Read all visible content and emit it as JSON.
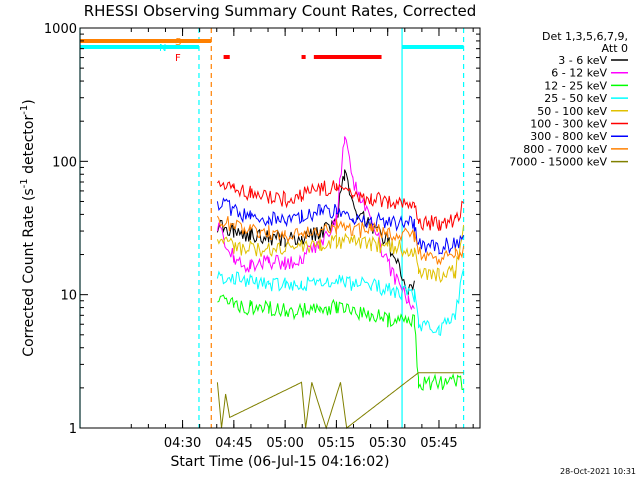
{
  "chart_data": {
    "type": "line",
    "title": "RHESSI Observing Summary Count Rates, Corrected",
    "xlabel": "Start Time (06-Jul-15 04:16:02)",
    "ylabel": "Corrected Count Rate (s⁻¹ detector⁻¹)",
    "ylabel_parts": {
      "main": "Corrected Count Rate (s",
      "sup1": "-1",
      "mid": " detector",
      "sup2": "-1",
      "end": ")"
    },
    "y_scale": "log",
    "ylim": [
      1,
      1000
    ],
    "xlim_minutes": [
      4.0,
      5.95
    ],
    "y_ticks": [
      {
        "v": 1,
        "label": "1"
      },
      {
        "v": 10,
        "label": "10"
      },
      {
        "v": 100,
        "label": "100"
      },
      {
        "v": 1000,
        "label": "1000"
      }
    ],
    "x_ticks": [
      {
        "t": 4.5,
        "label": "04:30"
      },
      {
        "t": 4.75,
        "label": "04:45"
      },
      {
        "t": 5.0,
        "label": "05:00"
      },
      {
        "t": 5.25,
        "label": "05:15"
      },
      {
        "t": 5.5,
        "label": "05:30"
      },
      {
        "t": 5.75,
        "label": "05:45"
      }
    ],
    "detectors": "Det 1,3,5,6,7,9,",
    "attenuator": "Att 0",
    "legend_placement": "right",
    "timestamp": "28-Oct-2021 10:31",
    "flags": [
      {
        "label": "S",
        "color": "#ff8000",
        "segments": [
          [
            4.0,
            4.64
          ]
        ]
      },
      {
        "label": "N",
        "color": "#00ffff",
        "segments": [
          [
            4.0,
            4.58
          ],
          [
            5.57,
            5.87
          ]
        ]
      },
      {
        "label": "F",
        "color": "#ff0000",
        "segments": [
          [
            4.7,
            4.73
          ],
          [
            5.08,
            5.1
          ],
          [
            5.14,
            5.47
          ]
        ]
      }
    ],
    "vlines": [
      {
        "t": 4.0,
        "color": "#00ffff",
        "style": "solid"
      },
      {
        "t": 4.58,
        "color": "#00ffff",
        "style": "dashed"
      },
      {
        "t": 4.64,
        "color": "#ff8000",
        "style": "dashed"
      },
      {
        "t": 5.57,
        "color": "#00ffff",
        "style": "solid"
      },
      {
        "t": 5.87,
        "color": "#00ffff",
        "style": "dashed"
      }
    ],
    "series": [
      {
        "name": "3 - 6 keV",
        "color": "#000000",
        "x": [
          4.67,
          4.75,
          4.83,
          4.92,
          5.0,
          5.08,
          5.17,
          5.25,
          5.29,
          5.33,
          5.42,
          5.5,
          5.6,
          5.63
        ],
        "y": [
          33,
          30,
          28,
          27,
          26,
          27,
          29,
          37,
          80,
          45,
          32,
          25,
          11,
          12
        ]
      },
      {
        "name": "6 - 12 keV",
        "color": "#ff00ff",
        "x": [
          4.67,
          4.75,
          4.83,
          4.92,
          5.0,
          5.08,
          5.17,
          5.25,
          5.29,
          5.33,
          5.42,
          5.5,
          5.6,
          5.63
        ],
        "y": [
          33,
          19,
          16,
          18,
          17,
          19,
          24,
          38,
          150,
          70,
          35,
          17,
          9,
          8
        ]
      },
      {
        "name": "12 - 25 keV",
        "color": "#00ff00",
        "x": [
          4.67,
          4.75,
          4.83,
          4.92,
          5.0,
          5.08,
          5.17,
          5.25,
          5.33,
          5.42,
          5.5,
          5.63,
          5.65,
          5.87
        ],
        "y": [
          9.5,
          8.5,
          8,
          8,
          7.5,
          7.5,
          8,
          8,
          7.5,
          7,
          6.5,
          6.5,
          2.2,
          2.2
        ]
      },
      {
        "name": "25 - 50 keV",
        "color": "#00ffff",
        "x": [
          4.67,
          4.75,
          4.83,
          4.92,
          5.0,
          5.08,
          5.17,
          5.25,
          5.33,
          5.42,
          5.5,
          5.63,
          5.65,
          5.75,
          5.83,
          5.87
        ],
        "y": [
          14,
          13,
          12.5,
          12,
          12,
          12,
          12.5,
          13,
          12,
          11.5,
          11,
          10,
          6,
          5.5,
          7,
          16
        ]
      },
      {
        "name": "50 - 100 keV",
        "color": "#e0c000",
        "x": [
          4.67,
          4.75,
          4.83,
          4.92,
          5.0,
          5.08,
          5.17,
          5.25,
          5.33,
          5.42,
          5.5,
          5.63,
          5.65,
          5.75,
          5.83,
          5.87
        ],
        "y": [
          27,
          23,
          22,
          22,
          22,
          23,
          24,
          25,
          25,
          24,
          23,
          22,
          15,
          14,
          15,
          33
        ]
      },
      {
        "name": "100 - 300 keV",
        "color": "#ff0000",
        "x": [
          4.67,
          4.75,
          4.83,
          4.92,
          5.0,
          5.08,
          5.17,
          5.25,
          5.33,
          5.42,
          5.5,
          5.63,
          5.65,
          5.75,
          5.83,
          5.87
        ],
        "y": [
          70,
          62,
          58,
          55,
          52,
          56,
          62,
          64,
          55,
          52,
          50,
          48,
          35,
          34,
          36,
          47
        ]
      },
      {
        "name": "300 - 800 keV",
        "color": "#0000ff",
        "x": [
          4.67,
          4.75,
          4.83,
          4.92,
          5.0,
          5.08,
          5.17,
          5.25,
          5.33,
          5.42,
          5.5,
          5.63,
          5.65,
          5.75,
          5.83,
          5.87
        ],
        "y": [
          50,
          43,
          38,
          37,
          36,
          38,
          42,
          42,
          38,
          36,
          35,
          34,
          24,
          23,
          24,
          26
        ]
      },
      {
        "name": "800 - 7000 keV",
        "color": "#ff8000",
        "x": [
          4.67,
          4.75,
          4.83,
          4.92,
          5.0,
          5.08,
          5.17,
          5.25,
          5.33,
          5.42,
          5.5,
          5.63,
          5.65,
          5.75,
          5.83,
          5.87
        ],
        "y": [
          38,
          32,
          30,
          29,
          28,
          29,
          31,
          32,
          31,
          30,
          29,
          28,
          20,
          19,
          20,
          21
        ]
      },
      {
        "name": "7000 - 15000 keV",
        "color": "#808000",
        "x": [
          4.67,
          4.69,
          4.71,
          4.73,
          5.08,
          5.1,
          5.13,
          5.2,
          5.27,
          5.3,
          5.65,
          5.7,
          5.8,
          5.87
        ],
        "y": [
          2.2,
          1.0,
          1.8,
          1.2,
          2.2,
          1.0,
          2.2,
          1.0,
          2.2,
          1.0,
          2.6,
          2.6,
          2.6,
          2.6
        ]
      }
    ]
  }
}
